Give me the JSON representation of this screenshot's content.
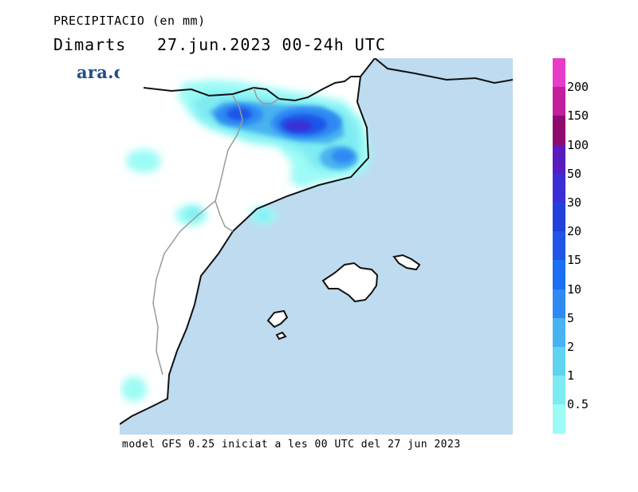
{
  "header": {
    "title": "PRECIPITACIO (en mm)",
    "day": "Dimarts",
    "datetime": "27.jun.2023 00-24h UTC"
  },
  "brand": {
    "logo_text": "ara.cat"
  },
  "footer": {
    "model_text": "model GFS 0.25 iniciat a les 00 UTC del 27 jun 2023"
  },
  "legend": {
    "labels": [
      "200",
      "150",
      "100",
      "50",
      "30",
      "20",
      "15",
      "10",
      "5",
      "2",
      "1",
      "0.5"
    ],
    "colors": [
      "#e83cc8",
      "#c21e9e",
      "#8f0b70",
      "#5a1bbf",
      "#3a2fd6",
      "#2140dc",
      "#1f55e8",
      "#1a6ff2",
      "#2f8af2",
      "#49b2f0",
      "#5fd3f0",
      "#7debf2",
      "#9cfbf5"
    ]
  },
  "map": {
    "sea_color": "#bedbef",
    "land_color": "#ffffff",
    "coast_color": "#111111",
    "border_color": "#9a9a9a"
  }
}
